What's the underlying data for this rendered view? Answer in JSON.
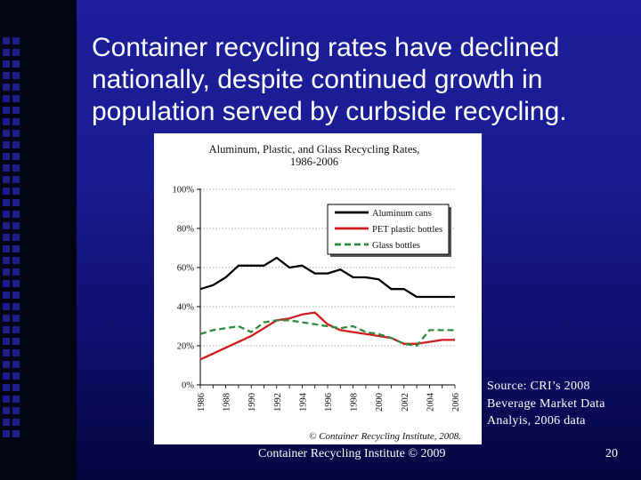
{
  "slide": {
    "title": "Container recycling rates have declined nationally, despite continued growth in population served by curbside recycling.",
    "source_note": "Source: CRI’s 2008 Beverage Market Data Analyis, 2006 data",
    "footer": "Container Recycling Institute © 2009",
    "page_number": "20",
    "colors": {
      "background": "#1a1c94",
      "stripe": "#040512",
      "text": "#ffffff"
    }
  },
  "chart_data": {
    "type": "line",
    "title": "Aluminum, Plastic, and Glass Recycling Rates, 1986-2006",
    "title_line1": "Aluminum, Plastic, and Glass Recycling Rates,",
    "title_line2": "1986-2006",
    "copyright": "© Container Recycling Institute, 2008.",
    "legend_position": "top-right",
    "grid": true,
    "ylim": [
      0,
      100
    ],
    "yticks": [
      "0%",
      "20%",
      "40%",
      "60%",
      "80%",
      "100%"
    ],
    "ytick_values": [
      0,
      20,
      40,
      60,
      80,
      100
    ],
    "xticks": [
      "1986",
      "1988",
      "1990",
      "1992",
      "1994",
      "1996",
      "1998",
      "2000",
      "2002",
      "2004",
      "2006"
    ],
    "x": [
      1986,
      1987,
      1988,
      1989,
      1990,
      1991,
      1992,
      1993,
      1994,
      1995,
      1996,
      1997,
      1998,
      1999,
      2000,
      2001,
      2002,
      2003,
      2004,
      2005,
      2006
    ],
    "series": [
      {
        "name": "Aluminum cans",
        "color": "#000000",
        "dash": "solid",
        "values": [
          49,
          51,
          55,
          61,
          61,
          61,
          65,
          60,
          61,
          57,
          57,
          59,
          55,
          55,
          54,
          49,
          49,
          45,
          45,
          45,
          45
        ]
      },
      {
        "name": "PET plastic bottles",
        "color": "#d01c1c",
        "dash": "solid",
        "values": [
          13,
          16,
          19,
          22,
          25,
          29,
          33,
          34,
          36,
          37,
          31,
          28,
          27,
          26,
          25,
          24,
          21,
          21,
          22,
          23,
          23
        ]
      },
      {
        "name": "Glass bottles",
        "color": "#2e8b3e",
        "dash": "dashed",
        "values": [
          26,
          28,
          29,
          30,
          27,
          32,
          33,
          33,
          32,
          31,
          30,
          29,
          30,
          27,
          26,
          24,
          21,
          20,
          28,
          28,
          28
        ]
      }
    ]
  }
}
